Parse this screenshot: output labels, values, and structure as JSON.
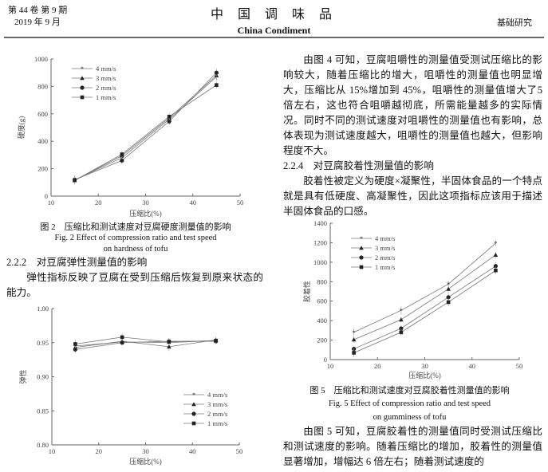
{
  "header": {
    "volume": "第 44 卷 第 9 期",
    "date": "2019 年 9 月",
    "journal_cn": "中 国 调 味 品",
    "journal_en": "China Condiment",
    "section": "基础研究"
  },
  "right_col": {
    "para1": "由图 4 可知，豆腐咀嚼性的测量值受测试压缩比的影响较大，随着压缩比的增大，咀嚼性的测量值也明显增大，压缩比从 15%增加到 45%，咀嚼性的测量值增大了5 倍左右，这也符合咀嚼越彻底，所需能量越多的实际情况。同时不同的测试速度对咀嚼性的测量值也有影响，总体表现为测试速度越大，咀嚼性的测量值也越大，但影响程度不大。",
    "heading": "2.2.4　对豆腐胶着性测量值的影响",
    "para2": "胶着性被定义为硬度×凝聚性，半固体食品的一个特点就是具有低硬度、高凝聚性，因此这项指标应该用于描述半固体食品的口感。",
    "para3": "由图 5 可知，豆腐胶着性的测量值同时受测试压缩比和测试速度的影响。随着压缩比的增加，胶着性的测量值显著增加，增幅达 6 倍左右；随着测试速度的"
  },
  "left_col": {
    "heading": "2.2.2　对豆腐弹性测量值的影响",
    "para": "弹性指标反映了豆腐在受到压缩后恢复到原来状态的能力。"
  },
  "fig2": {
    "cn": "图 2　压缩比和测试速度对豆腐硬度测量值的影响",
    "en1": "Fig. 2 Effect of compression ratio and test speed",
    "en2": "on hardness of tofu"
  },
  "fig5": {
    "cn": "图 5　压缩比和测试速度对豆腐胶着性测量值的影响",
    "en1": "Fig. 5 Effect of compression ratio and test speed",
    "en2": "on gumminess of tofu"
  },
  "chart_data": [
    {
      "type": "line",
      "xlabel": "压缩比(%)",
      "ylabel": "硬度(g)",
      "xlim": [
        10,
        50
      ],
      "ylim": [
        0,
        1000
      ],
      "xticks": [
        10,
        20,
        30,
        40,
        50
      ],
      "yticks": [
        0,
        200,
        400,
        600,
        800,
        1000
      ],
      "legend": "top-left",
      "error_bars": true,
      "x": [
        15,
        25,
        35,
        45
      ],
      "series": [
        {
          "name": "4 mm/s",
          "marker": "star",
          "values": [
            118,
            280,
            560,
            870
          ]
        },
        {
          "name": "3 mm/s",
          "marker": "triangle",
          "values": [
            115,
            295,
            570,
            880
          ]
        },
        {
          "name": "2 mm/s",
          "marker": "circle",
          "values": [
            120,
            260,
            545,
            900
          ]
        },
        {
          "name": "1 mm/s",
          "marker": "square",
          "values": [
            115,
            305,
            580,
            810
          ]
        }
      ]
    },
    {
      "type": "line",
      "xlabel": "压缩比(%)",
      "ylabel": "弹性",
      "xlim": [
        10,
        50
      ],
      "ylim": [
        0.8,
        1.0
      ],
      "xticks": [
        10,
        20,
        30,
        40,
        50
      ],
      "yticks": [
        "0.80",
        "0.85",
        "0.90",
        "0.95",
        "1.00"
      ],
      "legend": "bottom-right",
      "error_bars": true,
      "x": [
        15,
        25,
        35,
        45
      ],
      "series": [
        {
          "name": "4 mm/s",
          "marker": "star",
          "values": [
            0.945,
            0.951,
            0.95,
            0.953
          ]
        },
        {
          "name": "3 mm/s",
          "marker": "triangle",
          "values": [
            0.943,
            0.952,
            0.944,
            0.954
          ]
        },
        {
          "name": "2 mm/s",
          "marker": "circle",
          "values": [
            0.94,
            0.95,
            0.952,
            0.952
          ]
        },
        {
          "name": "1 mm/s",
          "marker": "square",
          "values": [
            0.948,
            0.958,
            0.951,
            0.953
          ]
        }
      ]
    },
    {
      "type": "line",
      "xlabel": "压缩比(%)",
      "ylabel": "胶着性",
      "xlim": [
        10,
        50
      ],
      "ylim": [
        0,
        1400
      ],
      "xticks": [
        10,
        20,
        30,
        40,
        50
      ],
      "yticks": [
        0,
        200,
        400,
        600,
        800,
        1000,
        1200,
        1400
      ],
      "legend": "top-left",
      "error_bars": true,
      "x": [
        15,
        25,
        35,
        45
      ],
      "series": [
        {
          "name": "4 mm/s",
          "marker": "star",
          "values": [
            280,
            505,
            775,
            1195
          ]
        },
        {
          "name": "3 mm/s",
          "marker": "triangle",
          "values": [
            205,
            410,
            725,
            1075
          ]
        },
        {
          "name": "2 mm/s",
          "marker": "circle",
          "values": [
            110,
            320,
            640,
            960
          ]
        },
        {
          "name": "1 mm/s",
          "marker": "square",
          "values": [
            70,
            280,
            590,
            915
          ]
        }
      ]
    }
  ]
}
